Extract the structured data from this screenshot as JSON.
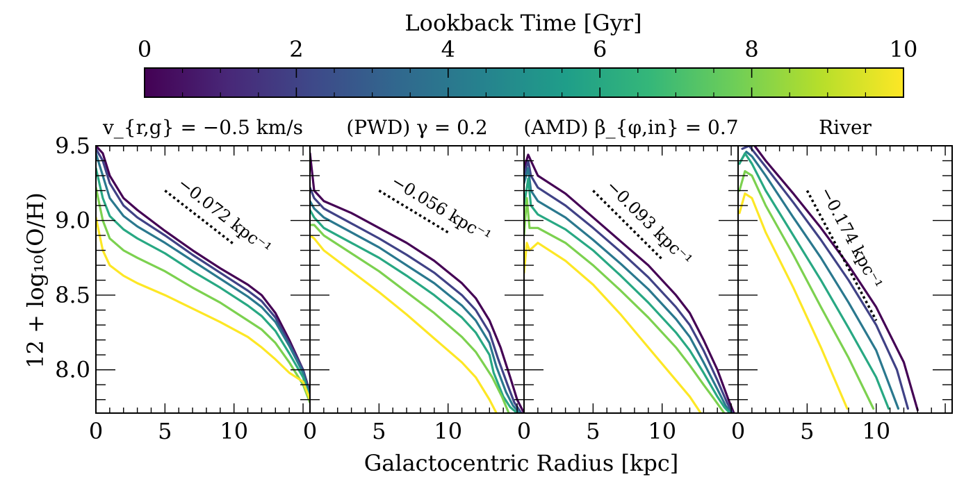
{
  "colorbar": {
    "label": "Lookback Time [Gyr]",
    "ticks": [
      "0",
      "2",
      "4",
      "6",
      "8",
      "10"
    ],
    "range": [
      0,
      10
    ],
    "colormap": [
      "#440154",
      "#482878",
      "#3e4989",
      "#31688e",
      "#26828e",
      "#1f9e89",
      "#35b779",
      "#6ece58",
      "#b5de2b",
      "#fde725"
    ]
  },
  "axes": {
    "xlabel": "Galactocentric Radius [kpc]",
    "ylabel": "12 + log₁₀(O/H)",
    "xticks": [
      "0",
      "5",
      "10"
    ],
    "yticks": [
      "9.5",
      "9.0",
      "8.5",
      "8.0"
    ],
    "xlim": [
      0,
      15.5
    ],
    "ylim": [
      7.71,
      9.5
    ]
  },
  "chart_data": [
    {
      "type": "line",
      "title": "v_{r,g} = −0.5 km/s",
      "slope_label": "−0.072 kpc⁻¹",
      "reference_line": {
        "x": [
          5,
          10
        ],
        "y": [
          9.2,
          8.84
        ]
      },
      "series": [
        {
          "lookback_gyr": 0,
          "x": [
            0,
            0.5,
            1,
            2,
            3,
            5,
            7,
            9,
            11,
            12,
            13,
            14,
            15,
            15.5
          ],
          "y": [
            9.5,
            9.45,
            9.3,
            9.15,
            9.07,
            8.93,
            8.8,
            8.68,
            8.57,
            8.5,
            8.38,
            8.2,
            8.0,
            7.85
          ]
        },
        {
          "lookback_gyr": 2,
          "x": [
            0,
            0.5,
            1,
            2,
            3,
            5,
            7,
            9,
            11,
            12,
            13,
            14,
            15,
            15.5
          ],
          "y": [
            9.48,
            9.4,
            9.25,
            9.1,
            9.02,
            8.9,
            8.77,
            8.65,
            8.53,
            8.46,
            8.35,
            8.18,
            8.0,
            7.84
          ]
        },
        {
          "lookback_gyr": 4,
          "x": [
            0,
            0.5,
            1,
            2,
            3,
            5,
            7,
            9,
            11,
            12,
            13,
            14,
            15,
            15.5
          ],
          "y": [
            9.45,
            9.3,
            9.15,
            9.03,
            8.96,
            8.85,
            8.73,
            8.61,
            8.49,
            8.42,
            8.32,
            8.16,
            7.98,
            7.82
          ]
        },
        {
          "lookback_gyr": 6,
          "x": [
            0,
            0.5,
            1,
            2,
            3,
            5,
            7,
            9,
            11,
            12,
            13,
            14,
            15,
            15.5
          ],
          "y": [
            9.35,
            9.15,
            9.03,
            8.94,
            8.88,
            8.78,
            8.66,
            8.55,
            8.43,
            8.36,
            8.26,
            8.11,
            7.95,
            7.8
          ]
        },
        {
          "lookback_gyr": 8,
          "x": [
            0,
            0.5,
            1,
            2,
            3,
            5,
            7,
            9,
            11,
            12,
            13,
            14,
            15,
            15.5
          ],
          "y": [
            9.22,
            9.0,
            8.88,
            8.8,
            8.75,
            8.66,
            8.55,
            8.45,
            8.33,
            8.27,
            8.18,
            8.05,
            7.9,
            7.78
          ]
        },
        {
          "lookback_gyr": 10,
          "x": [
            0,
            0.5,
            1,
            2,
            3,
            5,
            7,
            9,
            11,
            12,
            13,
            14,
            15,
            15.5
          ],
          "y": [
            9.02,
            8.8,
            8.7,
            8.63,
            8.58,
            8.5,
            8.41,
            8.32,
            8.22,
            8.15,
            8.07,
            7.98,
            7.92,
            7.8
          ]
        }
      ]
    },
    {
      "type": "line",
      "title": "(PWD) γ = 0.2",
      "slope_label": "−0.056 kpc⁻¹",
      "reference_line": {
        "x": [
          5,
          10
        ],
        "y": [
          9.2,
          8.92
        ]
      },
      "series": [
        {
          "lookback_gyr": 0,
          "x": [
            0,
            0.3,
            1,
            3,
            5,
            7,
            9,
            11,
            12,
            13,
            13.8,
            14.5,
            15,
            15.5
          ],
          "y": [
            9.45,
            9.2,
            9.13,
            9.05,
            8.95,
            8.85,
            8.73,
            8.58,
            8.48,
            8.33,
            8.15,
            7.95,
            7.8,
            7.71
          ]
        },
        {
          "lookback_gyr": 2,
          "x": [
            0,
            0.3,
            1,
            3,
            5,
            7,
            9,
            11,
            12,
            13,
            13.6,
            14.3,
            14.8,
            15.3
          ],
          "y": [
            9.22,
            9.15,
            9.08,
            8.98,
            8.88,
            8.77,
            8.65,
            8.5,
            8.4,
            8.25,
            8.08,
            7.9,
            7.78,
            7.71
          ]
        },
        {
          "lookback_gyr": 4,
          "x": [
            0,
            0.3,
            1,
            3,
            5,
            7,
            9,
            11,
            12,
            13,
            13.5,
            14.2,
            14.7,
            15.2
          ],
          "y": [
            9.13,
            9.08,
            9.02,
            8.92,
            8.82,
            8.7,
            8.58,
            8.43,
            8.33,
            8.18,
            8.02,
            7.85,
            7.76,
            7.71
          ]
        },
        {
          "lookback_gyr": 6,
          "x": [
            0,
            0.3,
            1,
            3,
            5,
            7,
            9,
            11,
            12,
            13,
            13.3,
            14.0,
            14.5,
            15.0
          ],
          "y": [
            9.07,
            9.02,
            8.95,
            8.85,
            8.75,
            8.63,
            8.5,
            8.35,
            8.25,
            8.1,
            7.98,
            7.82,
            7.75,
            7.71
          ]
        },
        {
          "lookback_gyr": 8,
          "x": [
            0,
            0.3,
            1,
            3,
            5,
            7,
            9,
            11,
            12,
            12.5,
            13.2,
            13.9,
            14.4
          ],
          "y": [
            8.97,
            8.97,
            8.9,
            8.78,
            8.66,
            8.52,
            8.38,
            8.22,
            8.12,
            8.05,
            7.95,
            7.82,
            7.71
          ]
        },
        {
          "lookback_gyr": 10,
          "x": [
            0,
            0.3,
            1,
            3,
            5,
            7,
            9,
            11,
            12,
            13,
            13.5
          ],
          "y": [
            8.9,
            8.88,
            8.8,
            8.66,
            8.52,
            8.37,
            8.21,
            8.05,
            7.95,
            7.8,
            7.71
          ]
        }
      ]
    },
    {
      "type": "line",
      "title": "(AMD) β_{φ,in} = 0.7",
      "slope_label": "−0.093 kpc⁻¹",
      "reference_line": {
        "x": [
          5,
          10
        ],
        "y": [
          9.2,
          8.74
        ]
      },
      "series": [
        {
          "lookback_gyr": 0,
          "x": [
            0,
            0.3,
            0.5,
            1,
            3,
            5,
            7,
            9,
            11,
            12,
            13,
            14,
            14.8,
            15.2
          ],
          "y": [
            9.35,
            9.44,
            9.4,
            9.3,
            9.18,
            9.02,
            8.86,
            8.7,
            8.5,
            8.38,
            8.2,
            8.0,
            7.8,
            7.71
          ]
        },
        {
          "lookback_gyr": 2,
          "x": [
            0,
            0.3,
            0.5,
            1,
            3,
            5,
            7,
            9,
            11,
            12,
            13,
            14,
            14.7,
            15.1
          ],
          "y": [
            9.3,
            9.4,
            9.3,
            9.22,
            9.1,
            8.95,
            8.79,
            8.62,
            8.42,
            8.3,
            8.13,
            7.93,
            7.78,
            7.71
          ]
        },
        {
          "lookback_gyr": 4,
          "x": [
            0,
            0.3,
            0.5,
            1,
            3,
            5,
            7,
            9,
            11,
            12,
            13,
            14,
            14.6,
            15.0
          ],
          "y": [
            9.25,
            9.35,
            9.2,
            9.13,
            9.02,
            8.87,
            8.71,
            8.54,
            8.34,
            8.22,
            8.05,
            7.87,
            7.76,
            7.71
          ]
        },
        {
          "lookback_gyr": 6,
          "x": [
            0,
            0.3,
            0.5,
            1,
            3,
            5,
            7,
            9,
            11,
            12,
            13,
            14,
            14.5,
            14.9
          ],
          "y": [
            9.1,
            9.28,
            9.1,
            9.04,
            8.94,
            8.8,
            8.63,
            8.45,
            8.25,
            8.13,
            7.98,
            7.82,
            7.75,
            7.71
          ]
        },
        {
          "lookback_gyr": 8,
          "x": [
            0,
            0.2,
            0.4,
            1,
            3,
            5,
            7,
            9,
            11,
            12,
            13,
            13.8,
            14.5
          ],
          "y": [
            8.9,
            9.15,
            8.95,
            8.95,
            8.85,
            8.7,
            8.53,
            8.35,
            8.15,
            8.03,
            7.9,
            7.8,
            7.71
          ]
        },
        {
          "lookback_gyr": 10,
          "x": [
            0,
            0.2,
            0.4,
            1,
            3,
            5,
            7,
            9,
            11,
            12,
            12.8
          ],
          "y": [
            8.65,
            8.85,
            8.8,
            8.85,
            8.73,
            8.57,
            8.37,
            8.15,
            7.93,
            7.82,
            7.71
          ]
        }
      ]
    },
    {
      "type": "line",
      "title": "River",
      "slope_label": "−0.174 kpc⁻¹",
      "reference_line": {
        "x": [
          5,
          10
        ],
        "y": [
          9.2,
          8.33
        ]
      },
      "series": [
        {
          "lookback_gyr": 0,
          "x": [
            0.5,
            1.2,
            2,
            4,
            6,
            8,
            10,
            12,
            13
          ],
          "y": [
            9.55,
            9.5,
            9.4,
            9.18,
            8.95,
            8.7,
            8.42,
            8.05,
            7.73
          ]
        },
        {
          "lookback_gyr": 2,
          "x": [
            0.3,
            0.8,
            2,
            4,
            6,
            8,
            10,
            11.5,
            12.3
          ],
          "y": [
            9.48,
            9.5,
            9.36,
            9.12,
            8.87,
            8.6,
            8.3,
            8.0,
            7.74
          ]
        },
        {
          "lookback_gyr": 4,
          "x": [
            0.2,
            0.6,
            1,
            2,
            4,
            6,
            8,
            10,
            11.6
          ],
          "y": [
            9.4,
            9.46,
            9.43,
            9.3,
            9.02,
            8.75,
            8.45,
            8.13,
            7.74
          ]
        },
        {
          "lookback_gyr": 6,
          "x": [
            0.1,
            0.5,
            1,
            2,
            4,
            6,
            8,
            10,
            10.9
          ],
          "y": [
            9.38,
            9.45,
            9.38,
            9.2,
            8.9,
            8.6,
            8.28,
            7.95,
            7.74
          ]
        },
        {
          "lookback_gyr": 8,
          "x": [
            0.1,
            0.5,
            1,
            2,
            4,
            6,
            8,
            9.8
          ],
          "y": [
            9.2,
            9.33,
            9.3,
            9.1,
            8.77,
            8.42,
            8.08,
            7.74
          ]
        },
        {
          "lookback_gyr": 10,
          "x": [
            0.1,
            0.5,
            1,
            2,
            4,
            6,
            7.9
          ],
          "y": [
            9.05,
            9.18,
            9.15,
            8.92,
            8.55,
            8.15,
            7.74
          ]
        }
      ]
    }
  ]
}
